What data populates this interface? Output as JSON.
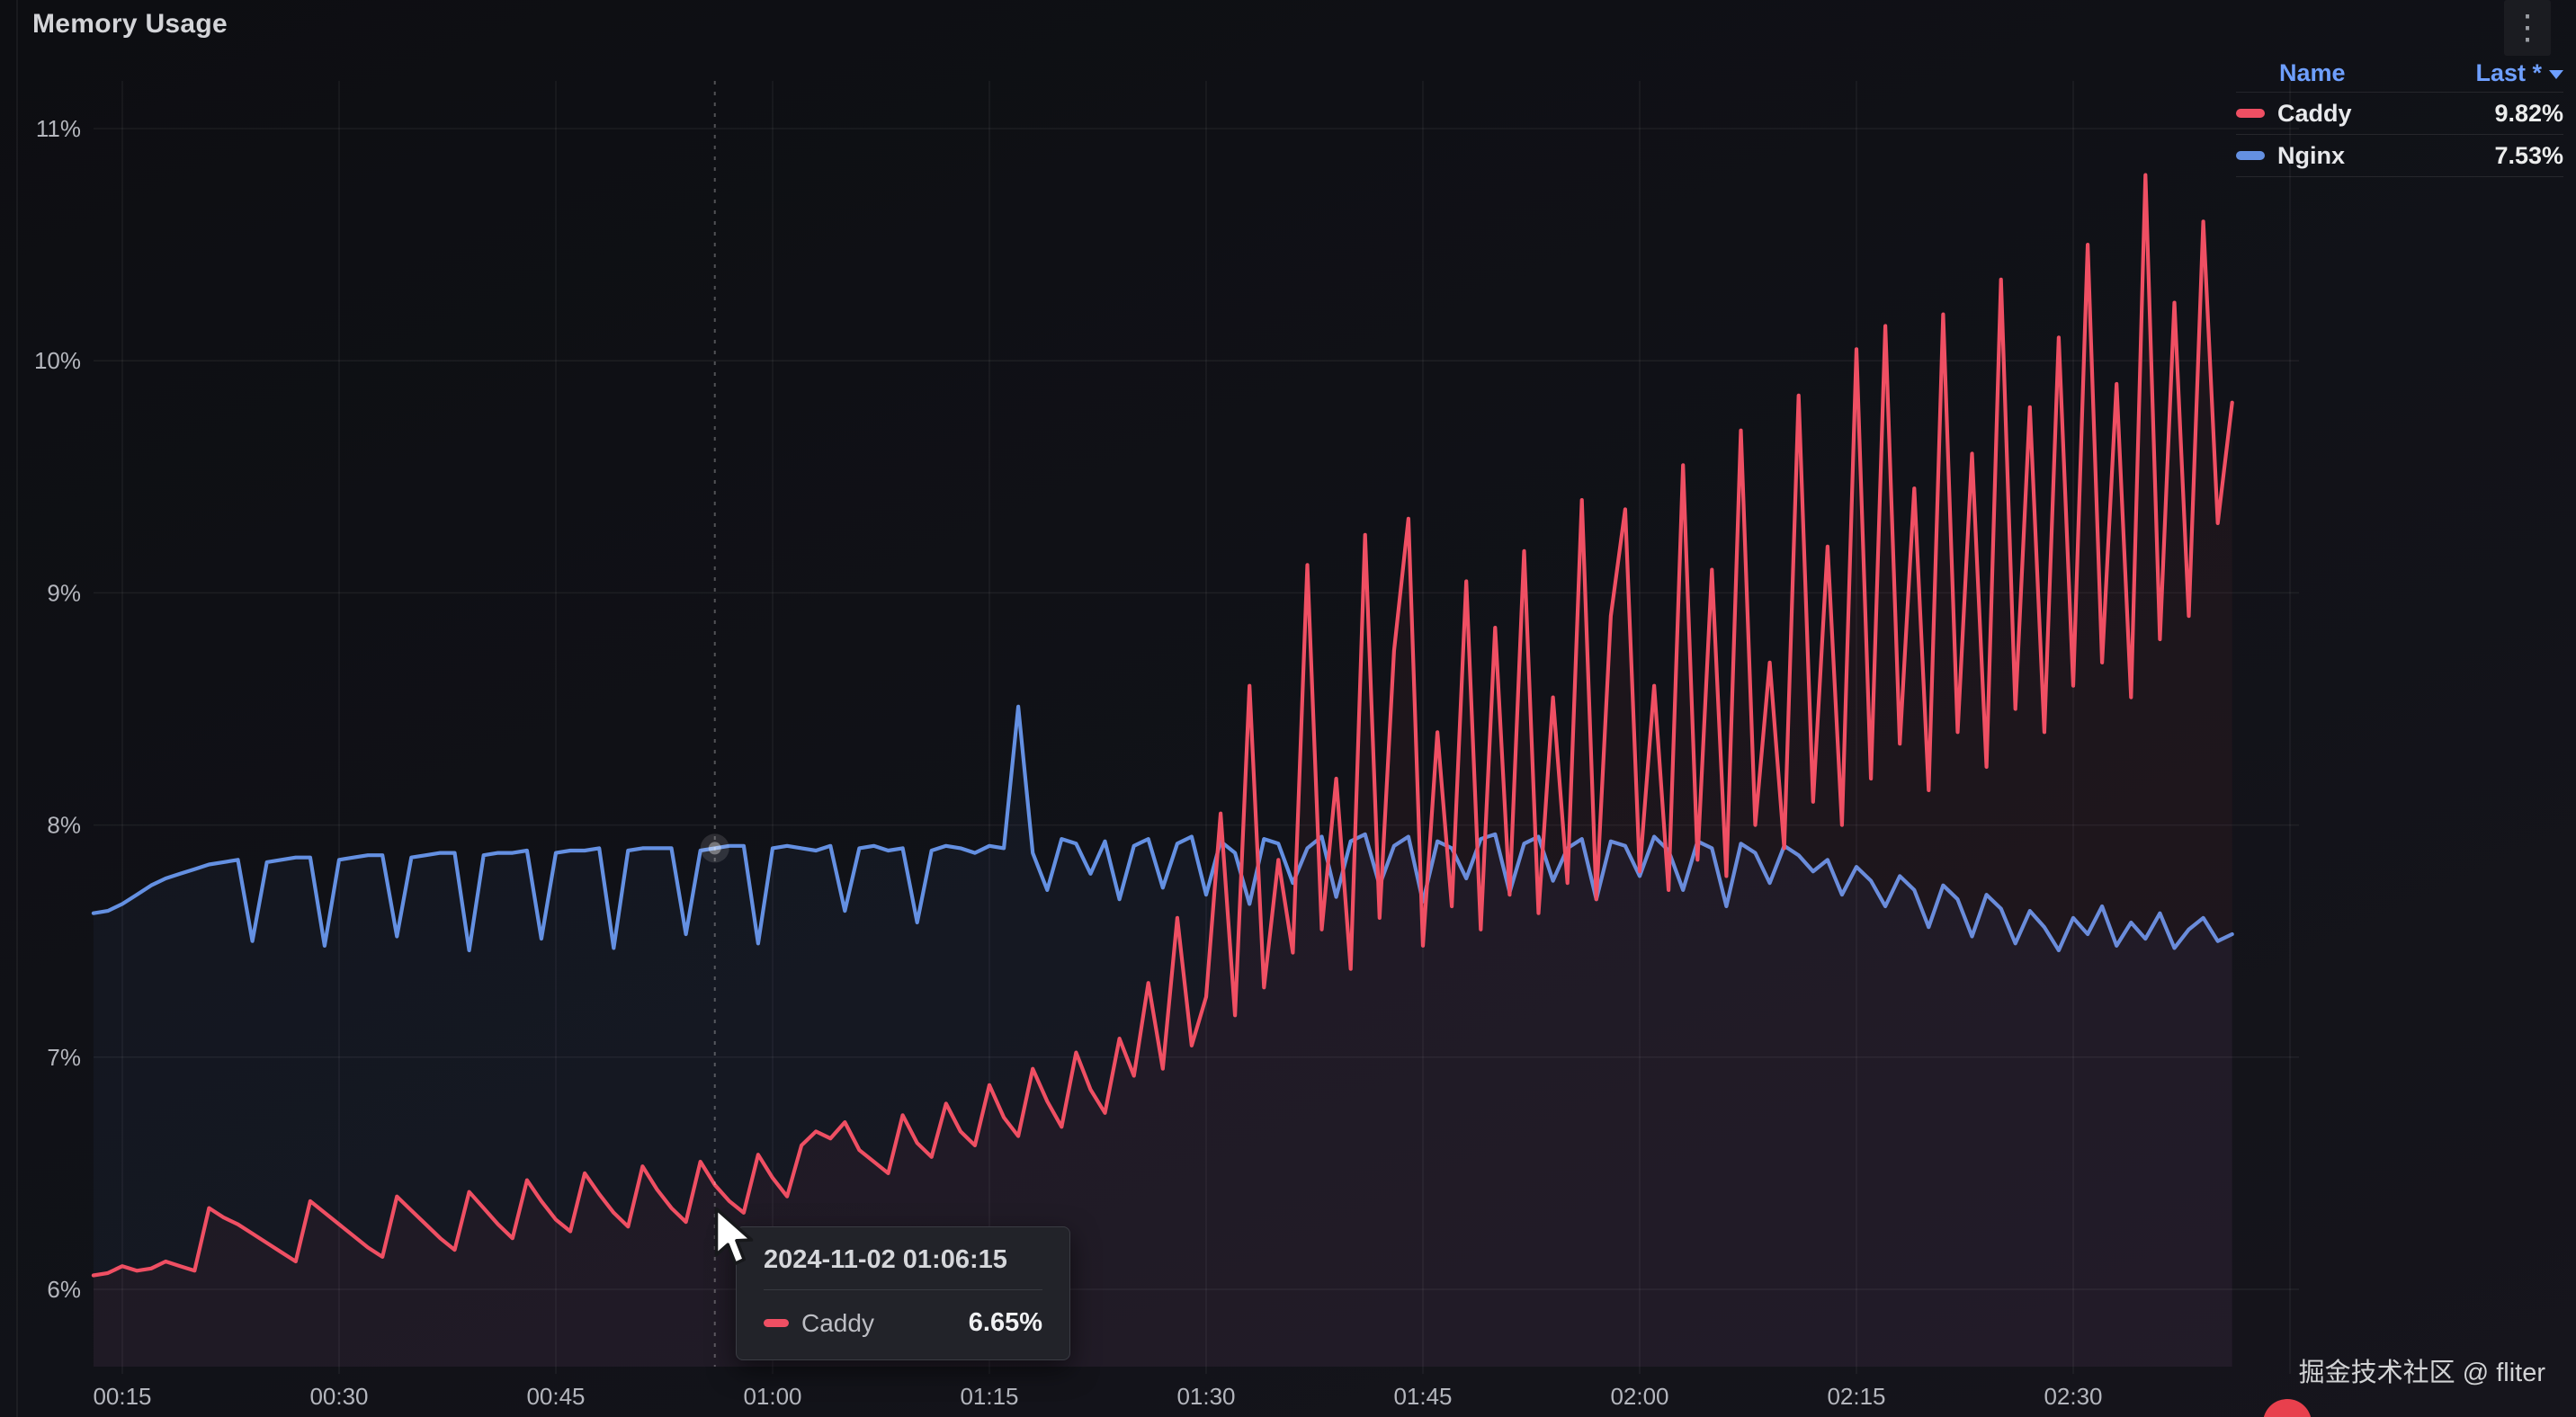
{
  "panel": {
    "title": "Memory Usage"
  },
  "icons": {
    "kebab_menu": "⋮",
    "sort_direction": "descending"
  },
  "legend": {
    "columns": [
      "Name",
      "Last *"
    ],
    "rows": [
      {
        "name": "Caddy",
        "last": "9.82%",
        "color": "#ef4f63"
      },
      {
        "name": "Nginx",
        "last": "7.53%",
        "color": "#6490e2"
      }
    ]
  },
  "tooltip": {
    "timestamp": "2024-11-02 01:06:15",
    "rows": [
      {
        "name": "Caddy",
        "value": "6.65%",
        "color": "#ef4f63"
      }
    ]
  },
  "watermark": {
    "text": "掘金技术社区 @ fliter"
  },
  "colors": {
    "background": "#111217",
    "grid": "rgba(255,255,255,0.06)",
    "axis_text": "#b4b6bd",
    "caddy": "#ef4f63",
    "nginx": "#6490e2",
    "legend_link": "#6e9fff",
    "crosshair": "rgba(255,255,255,0.28)"
  },
  "chart_data": {
    "type": "line",
    "title": "Memory Usage",
    "grid": true,
    "legend_position": "top-right",
    "y_axis": {
      "tick_values": [
        6,
        7,
        8,
        9,
        10,
        11
      ],
      "tick_labels": [
        "6%",
        "7%",
        "8%",
        "9%",
        "10%",
        "11%"
      ],
      "range": [
        5.6,
        11.2
      ],
      "unit": "percent"
    },
    "x_axis": {
      "ticks": [
        {
          "m": 15,
          "label": "00:15"
        },
        {
          "m": 30,
          "label": "00:30"
        },
        {
          "m": 45,
          "label": "00:45"
        },
        {
          "m": 60,
          "label": "01:00"
        },
        {
          "m": 75,
          "label": "01:15"
        },
        {
          "m": 90,
          "label": "01:30"
        },
        {
          "m": 105,
          "label": "01:45"
        },
        {
          "m": 120,
          "label": "02:00"
        },
        {
          "m": 135,
          "label": "02:15"
        },
        {
          "m": 150,
          "label": "02:30"
        },
        {
          "m": 165,
          "label": ""
        }
      ],
      "range_minutes": [
        13,
        161
      ]
    },
    "crosshair": {
      "minutes": 56
    },
    "series": [
      {
        "name": "Caddy",
        "color": "#ef4f63",
        "last": "9.82%",
        "t_start_min": 13,
        "t_step_min": 1,
        "values": [
          6.06,
          6.07,
          6.1,
          6.08,
          6.09,
          6.12,
          6.1,
          6.08,
          6.35,
          6.31,
          6.28,
          6.24,
          6.2,
          6.16,
          6.12,
          6.38,
          6.33,
          6.28,
          6.23,
          6.18,
          6.14,
          6.4,
          6.34,
          6.28,
          6.22,
          6.17,
          6.42,
          6.35,
          6.28,
          6.22,
          6.47,
          6.38,
          6.3,
          6.25,
          6.5,
          6.41,
          6.33,
          6.27,
          6.53,
          6.43,
          6.35,
          6.29,
          6.55,
          6.45,
          6.38,
          6.33,
          6.58,
          6.48,
          6.4,
          6.62,
          6.68,
          6.65,
          6.72,
          6.6,
          6.55,
          6.5,
          6.75,
          6.63,
          6.57,
          6.8,
          6.68,
          6.62,
          6.88,
          6.74,
          6.66,
          6.95,
          6.81,
          6.7,
          7.02,
          6.86,
          6.76,
          7.08,
          6.92,
          7.32,
          6.95,
          7.6,
          7.05,
          7.26,
          8.05,
          7.18,
          8.6,
          7.3,
          7.85,
          7.45,
          9.12,
          7.55,
          8.2,
          7.38,
          9.25,
          7.6,
          8.75,
          9.32,
          7.48,
          8.4,
          7.65,
          9.05,
          7.55,
          8.85,
          7.7,
          9.18,
          7.62,
          8.55,
          7.75,
          9.4,
          7.68,
          8.9,
          9.36,
          7.8,
          8.6,
          7.72,
          9.55,
          7.85,
          9.1,
          7.78,
          9.7,
          8.0,
          8.7,
          7.9,
          9.85,
          8.1,
          9.2,
          8.0,
          10.05,
          8.2,
          10.15,
          8.35,
          9.45,
          8.15,
          10.2,
          8.4,
          9.6,
          8.25,
          10.35,
          8.5,
          9.8,
          8.4,
          10.1,
          8.6,
          10.5,
          8.7,
          9.9,
          8.55,
          10.8,
          8.8,
          10.25,
          8.9,
          10.6,
          9.3,
          9.82
        ]
      },
      {
        "name": "Nginx",
        "color": "#6490e2",
        "last": "7.53%",
        "t_start_min": 13,
        "t_step_min": 1,
        "values": [
          7.62,
          7.63,
          7.66,
          7.7,
          7.74,
          7.77,
          7.79,
          7.81,
          7.83,
          7.84,
          7.85,
          7.5,
          7.84,
          7.85,
          7.86,
          7.86,
          7.48,
          7.85,
          7.86,
          7.87,
          7.87,
          7.52,
          7.86,
          7.87,
          7.88,
          7.88,
          7.46,
          7.87,
          7.88,
          7.88,
          7.89,
          7.51,
          7.88,
          7.89,
          7.89,
          7.9,
          7.47,
          7.89,
          7.9,
          7.9,
          7.9,
          7.53,
          7.89,
          7.9,
          7.91,
          7.91,
          7.49,
          7.9,
          7.91,
          7.9,
          7.89,
          7.91,
          7.63,
          7.9,
          7.91,
          7.89,
          7.9,
          7.58,
          7.89,
          7.91,
          7.9,
          7.88,
          7.91,
          7.9,
          8.51,
          7.88,
          7.72,
          7.94,
          7.92,
          7.79,
          7.93,
          7.68,
          7.91,
          7.94,
          7.73,
          7.92,
          7.95,
          7.7,
          7.93,
          7.88,
          7.66,
          7.94,
          7.92,
          7.75,
          7.9,
          7.95,
          7.69,
          7.93,
          7.96,
          7.74,
          7.91,
          7.95,
          7.67,
          7.93,
          7.9,
          7.77,
          7.94,
          7.96,
          7.71,
          7.92,
          7.95,
          7.76,
          7.9,
          7.94,
          7.68,
          7.93,
          7.91,
          7.78,
          7.95,
          7.89,
          7.72,
          7.93,
          7.9,
          7.65,
          7.92,
          7.88,
          7.75,
          7.91,
          7.87,
          7.8,
          7.85,
          7.7,
          7.82,
          7.76,
          7.65,
          7.78,
          7.72,
          7.56,
          7.74,
          7.68,
          7.52,
          7.7,
          7.64,
          7.49,
          7.63,
          7.56,
          7.46,
          7.6,
          7.53,
          7.65,
          7.48,
          7.58,
          7.51,
          7.62,
          7.47,
          7.55,
          7.6,
          7.5,
          7.53
        ]
      }
    ]
  }
}
